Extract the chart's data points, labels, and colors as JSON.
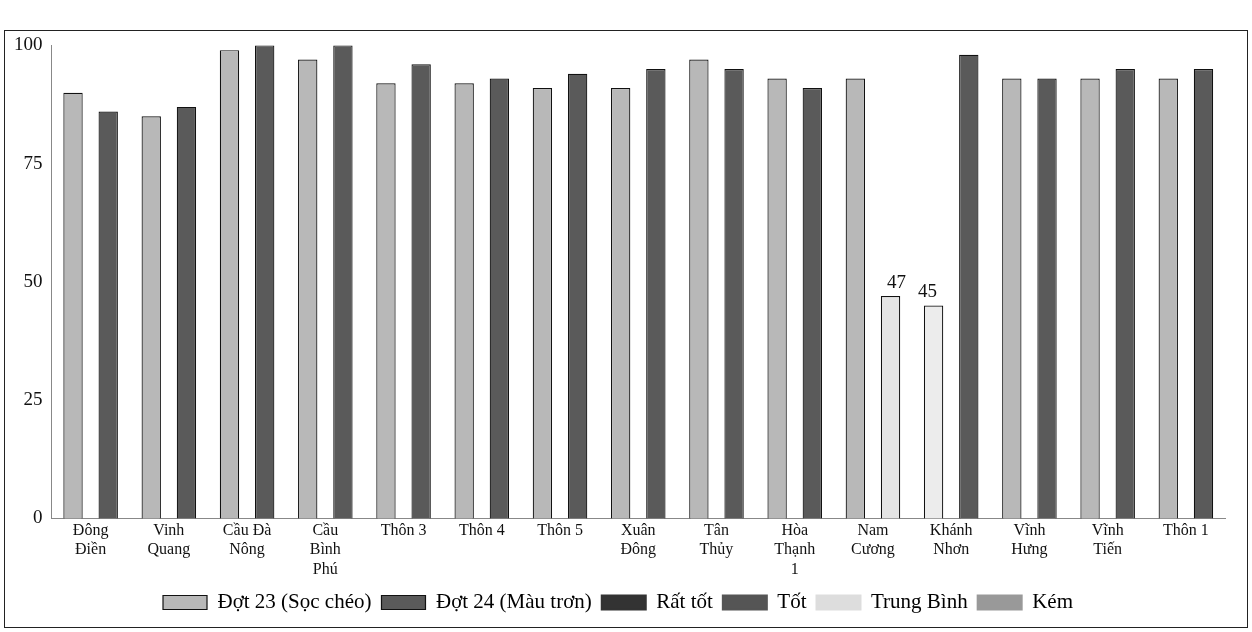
{
  "chart_data": {
    "type": "bar",
    "categories": [
      "Đông Điền",
      "Vinh Quang",
      "Cầu Đà Nông",
      "Cầu Bình Phú",
      "Thôn 3",
      "Thôn 4",
      "Thôn 5",
      "Xuân Đông",
      "Tân Thủy",
      "Hòa Thạnh 1",
      "Nam Cương",
      "Khánh Nhơn",
      "Vĩnh Hưng",
      "Vĩnh Tiến",
      "Thôn 1"
    ],
    "series": [
      {
        "name": "Đợt 23 (Sọc chéo)",
        "color": "#b8b8b8",
        "colors": [
          "#b8b8b8",
          "#b8b8b8",
          "#b8b8b8",
          "#b8b8b8",
          "#b8b8b8",
          "#b8b8b8",
          "#b8b8b8",
          "#b8b8b8",
          "#b8b8b8",
          "#b8b8b8",
          "#b8b8b8",
          "#ececec",
          "#b8b8b8",
          "#b8b8b8",
          "#b8b8b8"
        ],
        "values": [
          90,
          85,
          99,
          97,
          92,
          92,
          91,
          91,
          97,
          93,
          93,
          45,
          93,
          93,
          93
        ],
        "value_labels": [
          null,
          null,
          null,
          null,
          null,
          null,
          null,
          null,
          null,
          null,
          null,
          "45",
          null,
          null,
          null
        ]
      },
      {
        "name": "Đợt 24 (Màu trơn)",
        "color": "#5a5a5a",
        "colors": [
          "#5a5a5a",
          "#5a5a5a",
          "#5a5a5a",
          "#5a5a5a",
          "#5a5a5a",
          "#5a5a5a",
          "#5a5a5a",
          "#5a5a5a",
          "#5a5a5a",
          "#5a5a5a",
          "#e4e4e4",
          "#5a5a5a",
          "#5a5a5a",
          "#5a5a5a",
          "#5a5a5a"
        ],
        "values": [
          86,
          87,
          100,
          100,
          96,
          93,
          94,
          95,
          95,
          91,
          47,
          98,
          93,
          95,
          95
        ],
        "value_labels": [
          null,
          null,
          null,
          null,
          null,
          null,
          null,
          null,
          null,
          null,
          "47",
          null,
          null,
          null,
          null
        ]
      },
      {
        "name": "Rất tốt",
        "type": "line",
        "color": "#333333",
        "values": [
          null,
          null,
          null,
          null,
          null,
          null,
          null,
          null,
          null,
          null,
          null,
          null,
          null,
          null,
          null
        ]
      },
      {
        "name": "Tốt",
        "type": "line",
        "color": "#555555",
        "values": [
          null,
          null,
          null,
          null,
          null,
          null,
          null,
          null,
          null,
          null,
          null,
          null,
          null,
          null,
          null
        ]
      },
      {
        "name": "Trung Bình",
        "type": "line",
        "color": "#dddddd",
        "values": [
          null,
          null,
          null,
          null,
          null,
          null,
          null,
          null,
          null,
          null,
          null,
          null,
          null,
          null,
          null
        ]
      },
      {
        "name": "Kém",
        "type": "line",
        "color": "#999999",
        "values": [
          null,
          null,
          null,
          null,
          null,
          null,
          null,
          null,
          null,
          null,
          null,
          null,
          null,
          null,
          null
        ]
      }
    ],
    "ylim": [
      0,
      100
    ],
    "yticks": [
      0,
      25,
      50,
      75,
      100
    ],
    "grid": false,
    "legend": "bottom"
  }
}
